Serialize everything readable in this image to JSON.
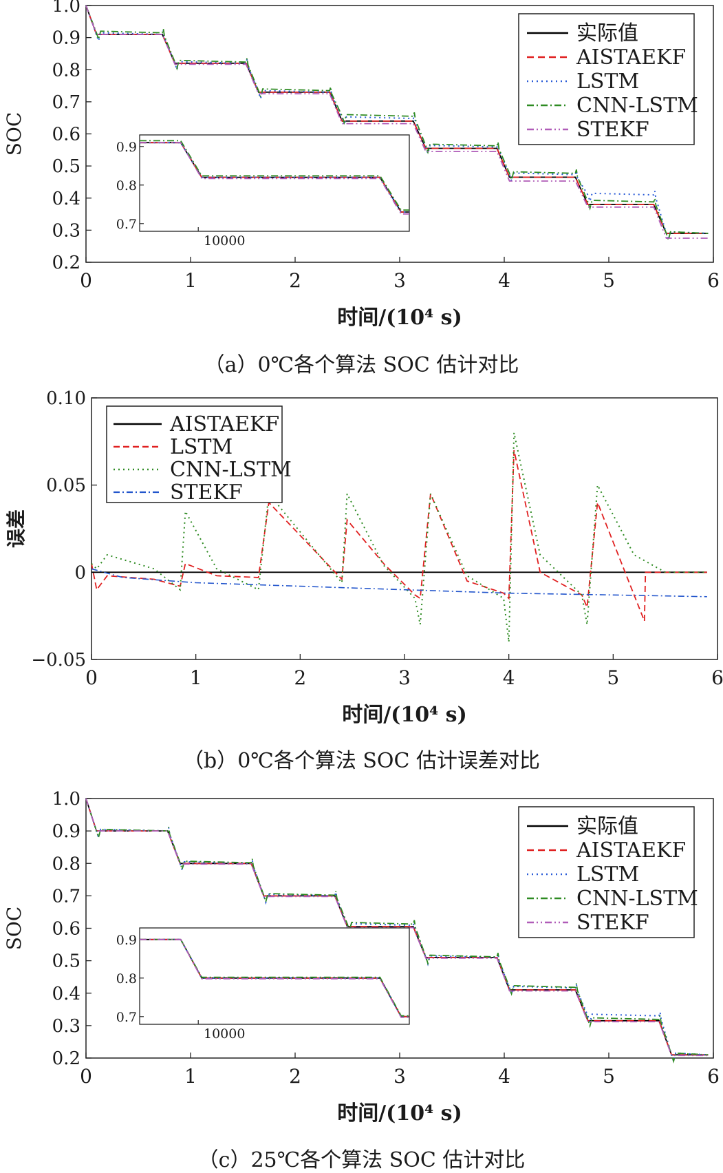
{
  "colors": {
    "black": "#000000",
    "red": "#e02020",
    "blue": "#2a5bd7",
    "green": "#2e8b22",
    "purple": "#b05cb8",
    "err_blue": "#2255cc"
  },
  "chart_data": [
    {
      "id": "a",
      "type": "line",
      "caption": "（a）0℃各个算法 SOC 估计对比",
      "xlabel": "时间/(10⁴ s)",
      "ylabel": "SOC",
      "xlim": [
        0,
        6
      ],
      "ylim": [
        0.2,
        1.0
      ],
      "xticks": [
        0,
        1,
        2,
        3,
        4,
        5,
        6
      ],
      "yticks": [
        "0.2",
        "0.3",
        "0.4",
        "0.5",
        "0.6",
        "0.7",
        "0.8",
        "0.9",
        "1.0"
      ],
      "legend": [
        "实际值",
        "AISTAEKF",
        "LSTM",
        "CNN-LSTM",
        "STEKF"
      ],
      "legend_position": "top-right",
      "steps": [
        [
          0.1,
          0.91
        ],
        [
          0.85,
          0.82
        ],
        [
          1.65,
          0.73
        ],
        [
          2.45,
          0.64
        ],
        [
          3.25,
          0.555
        ],
        [
          4.05,
          0.465
        ],
        [
          4.8,
          0.38
        ],
        [
          5.55,
          0.29
        ]
      ],
      "step_offsets": {
        "AISTAEKF": [
          0,
          0,
          0,
          0,
          0,
          0,
          0,
          0
        ],
        "LSTM": [
          0,
          0,
          0,
          0.008,
          0.004,
          0.008,
          0.03,
          0
        ],
        "CNN-LSTM": [
          0.005,
          0.004,
          0.005,
          0.015,
          0.008,
          0.012,
          0.008,
          0
        ],
        "STEKF": [
          0,
          -0.003,
          -0.005,
          -0.008,
          -0.01,
          -0.012,
          -0.008,
          -0.015
        ]
      },
      "inset": {
        "xtick": "10000",
        "yticks": [
          "0.7",
          "0.8",
          "0.9"
        ]
      }
    },
    {
      "id": "b",
      "type": "line",
      "caption": "（b）0℃各个算法 SOC 估计误差对比",
      "xlabel": "时间/(10⁴ s)",
      "ylabel": "误差",
      "xlim": [
        0,
        6
      ],
      "ylim": [
        -0.05,
        0.1
      ],
      "xticks": [
        0,
        1,
        2,
        3,
        4,
        5,
        6
      ],
      "yticks": [
        "−0.05",
        "0",
        "0.05",
        "0.10"
      ],
      "legend": [
        "AISTAEKF",
        "LSTM",
        "CNN-LSTM",
        "STEKF"
      ],
      "legend_position": "top-left",
      "series": [
        {
          "name": "AISTAEKF",
          "x": [
            0,
            5.9
          ],
          "y": [
            0,
            0
          ]
        },
        {
          "name": "LSTM",
          "x": [
            0,
            0.05,
            0.15,
            0.6,
            0.85,
            0.9,
            1.2,
            1.6,
            1.7,
            2.4,
            2.45,
            2.8,
            3.1,
            3.15,
            3.25,
            3.6,
            3.95,
            4.0,
            4.05,
            4.3,
            4.7,
            4.75,
            4.85,
            5.3,
            5.31,
            5.9
          ],
          "y": [
            0.005,
            -0.01,
            -0.002,
            -0.004,
            -0.008,
            0.005,
            -0.002,
            -0.003,
            0.04,
            -0.004,
            0.03,
            0.005,
            -0.013,
            -0.015,
            0.045,
            -0.005,
            -0.012,
            -0.015,
            0.07,
            0.0,
            -0.013,
            -0.02,
            0.04,
            -0.028,
            0,
            0
          ]
        },
        {
          "name": "CNN-LSTM",
          "x": [
            0,
            0.05,
            0.15,
            0.6,
            0.85,
            0.9,
            1.2,
            1.6,
            1.7,
            2.4,
            2.45,
            2.8,
            3.1,
            3.15,
            3.25,
            3.6,
            3.95,
            4.0,
            4.05,
            4.3,
            4.7,
            4.75,
            4.85,
            5.2,
            5.5,
            5.9
          ],
          "y": [
            0.005,
            0.002,
            0.01,
            0.002,
            -0.01,
            0.035,
            0.002,
            -0.01,
            0.045,
            -0.006,
            0.045,
            0.004,
            -0.015,
            -0.03,
            0.045,
            -0.002,
            -0.015,
            -0.04,
            0.08,
            0.01,
            -0.013,
            -0.03,
            0.05,
            0.01,
            0,
            0
          ]
        },
        {
          "name": "STEKF",
          "x": [
            0,
            0.3,
            1.0,
            2.0,
            3.0,
            4.0,
            5.0,
            5.9
          ],
          "y": [
            0.002,
            -0.003,
            -0.006,
            -0.008,
            -0.01,
            -0.012,
            -0.013,
            -0.014
          ]
        }
      ]
    },
    {
      "id": "c",
      "type": "line",
      "caption": "（c）25℃各个算法 SOC 估计对比",
      "xlabel": "时间/(10⁴ s)",
      "ylabel": "SOC",
      "xlim": [
        0,
        6
      ],
      "ylim": [
        0.2,
        1.0
      ],
      "xticks": [
        0,
        1,
        2,
        3,
        4,
        5,
        6
      ],
      "yticks": [
        "0.2",
        "0.3",
        "0.4",
        "0.5",
        "0.6",
        "0.7",
        "0.8",
        "0.9",
        "1.0"
      ],
      "legend": [
        "实际值",
        "AISTAEKF",
        "LSTM",
        "CNN-LSTM",
        "STEKF"
      ],
      "legend_position": "top-right",
      "steps": [
        [
          0.1,
          0.9
        ],
        [
          0.9,
          0.8
        ],
        [
          1.7,
          0.7
        ],
        [
          2.5,
          0.605
        ],
        [
          3.25,
          0.51
        ],
        [
          4.05,
          0.41
        ],
        [
          4.8,
          0.315
        ],
        [
          5.6,
          0.21
        ]
      ],
      "step_offsets": {
        "AISTAEKF": [
          0,
          0,
          0,
          0,
          0,
          0,
          0,
          0
        ],
        "LSTM": [
          0,
          0,
          0,
          0.004,
          0,
          0.006,
          0.015,
          0
        ],
        "CNN-LSTM": [
          0,
          0.002,
          0.002,
          0.008,
          0.002,
          0.008,
          0.004,
          0
        ],
        "STEKF": [
          0,
          -0.002,
          -0.002,
          -0.003,
          -0.002,
          -0.003,
          -0.003,
          -0.002
        ]
      },
      "inset": {
        "xtick": "10000",
        "yticks": [
          "0.7",
          "0.8",
          "0.9"
        ]
      }
    }
  ]
}
